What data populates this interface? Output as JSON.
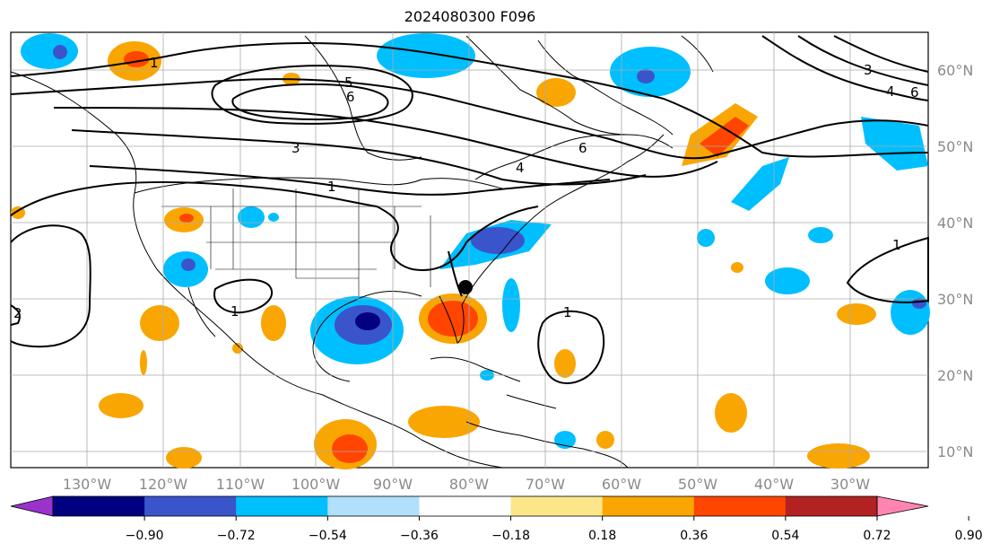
{
  "title": "2024080300 F096",
  "map": {
    "lon_labels": [
      "130°W",
      "120°W",
      "110°W",
      "100°W",
      "90°W",
      "80°W",
      "70°W",
      "60°W",
      "50°W",
      "40°W",
      "30°W"
    ],
    "lat_labels": [
      "60°N",
      "50°N",
      "40°N",
      "30°N",
      "20°N",
      "10°N"
    ],
    "contour_labels": [
      "1",
      "5",
      "6",
      "3",
      "1",
      "4",
      "6",
      "3",
      "4",
      "6",
      "1",
      "1",
      "1",
      "2"
    ],
    "marker": "storm-center"
  },
  "colorbar": {
    "tick_labels": [
      "−0.90",
      "−0.72",
      "−0.54",
      "−0.36",
      "−0.18",
      "0.18",
      "0.36",
      "0.54",
      "0.72",
      "0.90"
    ],
    "colors": [
      "#9933cc",
      "#000080",
      "#3a55cc",
      "#00bfff",
      "#b0e0fa",
      "#ffffff",
      "#fce68a",
      "#f9a602",
      "#ff4500",
      "#b22222",
      "#ff85b0"
    ]
  }
}
